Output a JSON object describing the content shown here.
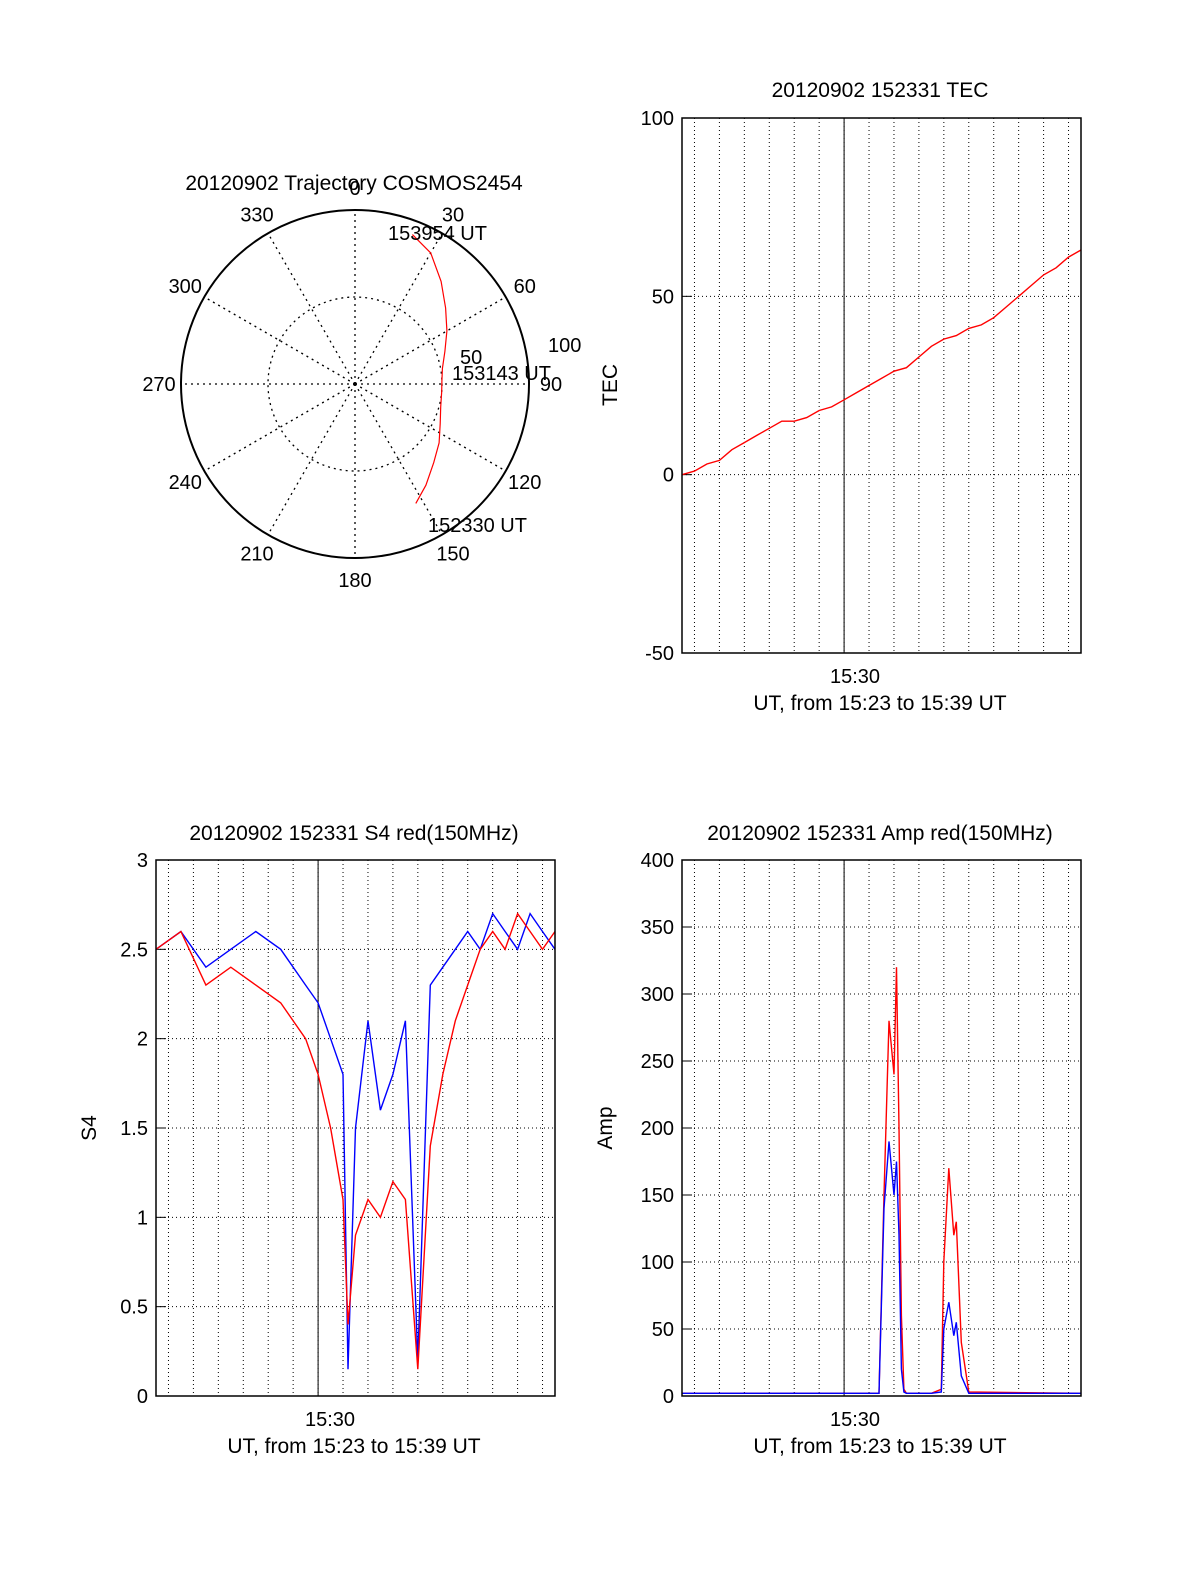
{
  "colors": {
    "red": "#ff0000",
    "blue": "#0000ff",
    "axis": "#000000",
    "grid": "#000000"
  },
  "chart_data": [
    {
      "id": "polar",
      "type": "polar-trajectory",
      "title": "20120902 Trajectory COSMOS2454",
      "azimuth_labels": [
        "0",
        "30",
        "60",
        "90",
        "120",
        "150",
        "180",
        "210",
        "240",
        "270",
        "300",
        "330"
      ],
      "radial_labels": [
        "50",
        "100"
      ],
      "grid": true,
      "trajectory": {
        "color": "red",
        "start": {
          "label": "152330 UT",
          "azimuth_deg": 153,
          "zenith": 77
        },
        "mid": {
          "label": "153143 UT",
          "azimuth_deg": 88,
          "zenith": 50
        },
        "end": {
          "label": "153954 UT",
          "azimuth_deg": 21,
          "zenith": 92
        },
        "azimuth_deg": [
          153,
          145,
          135,
          125,
          115,
          105,
          95,
          88,
          80,
          70,
          60,
          50,
          40,
          30,
          21
        ],
        "zenith": [
          77,
          71,
          64,
          59,
          54,
          51,
          50,
          50,
          51,
          55,
          61,
          68,
          77,
          87,
          92
        ]
      }
    },
    {
      "id": "tec",
      "type": "line",
      "title": "20120902 152331 TEC",
      "ylabel": "TEC",
      "xlabel": "UT, from 15:23 to 15:39 UT",
      "x_tick_label": "15:30",
      "xlim_minutes": [
        23.5,
        39.5
      ],
      "x_tick_minute": 30,
      "ylim": [
        -50,
        100
      ],
      "y_ticks": [
        "-50",
        "0",
        "50",
        "100"
      ],
      "grid": true,
      "series": [
        {
          "color": "red",
          "x_minutes": [
            23.5,
            24.0,
            24.5,
            25.0,
            25.5,
            26.0,
            26.5,
            27.0,
            27.5,
            28.0,
            28.5,
            29.0,
            29.5,
            30.0,
            30.5,
            31.0,
            31.5,
            32.0,
            32.5,
            33.0,
            33.5,
            34.0,
            34.5,
            35.0,
            35.5,
            36.0,
            36.5,
            37.0,
            37.5,
            38.0,
            38.5,
            39.0,
            39.5
          ],
          "values": [
            0,
            1,
            3,
            4,
            7,
            9,
            11,
            13,
            15,
            15,
            16,
            18,
            19,
            21,
            23,
            25,
            27,
            29,
            30,
            33,
            36,
            38,
            39,
            41,
            42,
            44,
            47,
            50,
            53,
            56,
            58,
            61,
            63
          ]
        }
      ]
    },
    {
      "id": "s4",
      "type": "line",
      "title": "20120902 152331 S4 red(150MHz)",
      "ylabel": "S4",
      "xlabel": "UT, from 15:23 to 15:39 UT",
      "x_tick_label": "15:30",
      "xlim_minutes": [
        23.5,
        39.5
      ],
      "x_tick_minute": 30,
      "ylim": [
        0,
        3
      ],
      "y_ticks": [
        "0",
        "0.5",
        "1",
        "1.5",
        "2",
        "2.5",
        "3"
      ],
      "grid": true,
      "series": [
        {
          "color": "blue",
          "x_minutes": [
            23.5,
            24.5,
            25.5,
            26.5,
            27.5,
            28.5,
            29.5,
            30.0,
            30.5,
            31.0,
            31.2,
            31.5,
            32.0,
            32.5,
            33.0,
            33.5,
            34.0,
            34.5,
            35.0,
            35.5,
            36.0,
            36.5,
            37.0,
            37.5,
            38.0,
            38.5,
            39.0,
            39.5
          ],
          "values": [
            2.5,
            2.6,
            2.4,
            2.5,
            2.6,
            2.5,
            2.3,
            2.2,
            2.0,
            1.8,
            0.15,
            1.5,
            2.1,
            1.6,
            1.8,
            2.1,
            0.2,
            2.3,
            2.4,
            2.5,
            2.6,
            2.5,
            2.7,
            2.6,
            2.5,
            2.7,
            2.6,
            2.5
          ]
        },
        {
          "color": "red",
          "x_minutes": [
            23.5,
            24.5,
            25.5,
            26.5,
            27.5,
            28.5,
            29.5,
            30.0,
            30.5,
            31.0,
            31.2,
            31.5,
            32.0,
            32.5,
            33.0,
            33.5,
            34.0,
            34.5,
            35.0,
            35.5,
            36.0,
            36.5,
            37.0,
            37.5,
            38.0,
            38.5,
            39.0,
            39.5
          ],
          "values": [
            2.5,
            2.6,
            2.3,
            2.4,
            2.3,
            2.2,
            2.0,
            1.8,
            1.5,
            1.1,
            0.4,
            0.9,
            1.1,
            1.0,
            1.2,
            1.1,
            0.15,
            1.4,
            1.8,
            2.1,
            2.3,
            2.5,
            2.6,
            2.5,
            2.7,
            2.6,
            2.5,
            2.6
          ]
        }
      ]
    },
    {
      "id": "amp",
      "type": "line",
      "title": "20120902 152331 Amp red(150MHz)",
      "ylabel": "Amp",
      "xlabel": "UT, from 15:23 to 15:39 UT",
      "x_tick_label": "15:30",
      "xlim_minutes": [
        23.5,
        39.5
      ],
      "x_tick_minute": 30,
      "ylim": [
        0,
        400
      ],
      "y_ticks": [
        "0",
        "50",
        "100",
        "150",
        "200",
        "250",
        "300",
        "350",
        "400"
      ],
      "grid": true,
      "series": [
        {
          "color": "red",
          "x_minutes": [
            23.5,
            30.0,
            31.4,
            31.6,
            31.8,
            32.0,
            32.1,
            32.2,
            32.3,
            32.4,
            32.5,
            33.5,
            33.9,
            34.0,
            34.2,
            34.4,
            34.5,
            34.7,
            35.0,
            39.5
          ],
          "values": [
            2,
            2,
            2,
            150,
            280,
            240,
            320,
            200,
            60,
            5,
            2,
            2,
            5,
            100,
            170,
            120,
            130,
            40,
            3,
            2
          ]
        },
        {
          "color": "blue",
          "x_minutes": [
            23.5,
            30.0,
            31.4,
            31.6,
            31.8,
            32.0,
            32.1,
            32.2,
            32.3,
            32.4,
            32.5,
            33.5,
            33.9,
            34.0,
            34.2,
            34.4,
            34.5,
            34.7,
            35.0,
            39.5
          ],
          "values": [
            2,
            2,
            2,
            140,
            190,
            150,
            175,
            120,
            20,
            3,
            2,
            2,
            3,
            50,
            70,
            45,
            55,
            15,
            2,
            2
          ]
        }
      ]
    }
  ]
}
